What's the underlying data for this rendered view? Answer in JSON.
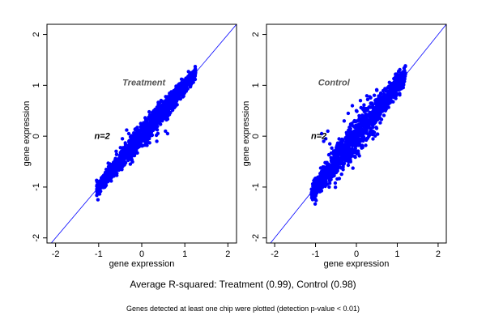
{
  "colors": {
    "points": "#0000FF",
    "identity_line": "#0000FF",
    "axis": "#000000",
    "panel_label": "#555555"
  },
  "chart_data": [
    {
      "type": "scatter",
      "panel_label": "Treatment",
      "replicate_label": "n=2",
      "xlabel": "gene expression",
      "ylabel": "gene expression",
      "xlim": [
        -2.2,
        2.2
      ],
      "ylim": [
        -2.1,
        2.2
      ],
      "xticks": [
        -2,
        -1,
        0,
        1,
        2
      ],
      "yticks": [
        -2,
        -1,
        0,
        1,
        2
      ],
      "identity_line": true,
      "cloud": {
        "x_min": -1.05,
        "x_max": 1.25,
        "spread": 0.09,
        "n_points": 1400,
        "outliers": [
          [
            -0.35,
            0.12
          ],
          [
            -0.3,
            0.05
          ],
          [
            -0.45,
            -0.05
          ],
          [
            -0.8,
            -0.85
          ],
          [
            0.4,
            0.35
          ],
          [
            0.5,
            0.6
          ],
          [
            0.6,
            0.05
          ],
          [
            0.35,
            -0.1
          ],
          [
            0.55,
            0.1
          ]
        ]
      }
    },
    {
      "type": "scatter",
      "panel_label": "Control",
      "replicate_label": "n=2",
      "xlabel": "gene expression",
      "ylabel": "gene expression",
      "xlim": [
        -2.2,
        2.2
      ],
      "ylim": [
        -2.1,
        2.2
      ],
      "xticks": [
        -2,
        -1,
        0,
        1,
        2
      ],
      "yticks": [
        -2,
        -1,
        0,
        1,
        2
      ],
      "identity_line": true,
      "cloud": {
        "x_min": -1.1,
        "x_max": 1.2,
        "spread": 0.13,
        "n_points": 1400,
        "outliers": [
          [
            -0.75,
            -0.05
          ],
          [
            -0.85,
            0.05
          ],
          [
            -0.7,
            0.1
          ],
          [
            -0.65,
            -0.15
          ],
          [
            -0.8,
            -0.1
          ],
          [
            -0.2,
            0.45
          ],
          [
            -0.1,
            0.6
          ],
          [
            0.0,
            0.5
          ],
          [
            0.1,
            0.7
          ],
          [
            -0.3,
            0.3
          ],
          [
            0.3,
            0.2
          ],
          [
            0.5,
            0.9
          ]
        ]
      }
    }
  ],
  "captions": {
    "main": "Average R-squared: Treatment (0.99), Control (0.98)",
    "sub": "Genes detected at least one chip were plotted (detection p-value < 0.01)"
  }
}
